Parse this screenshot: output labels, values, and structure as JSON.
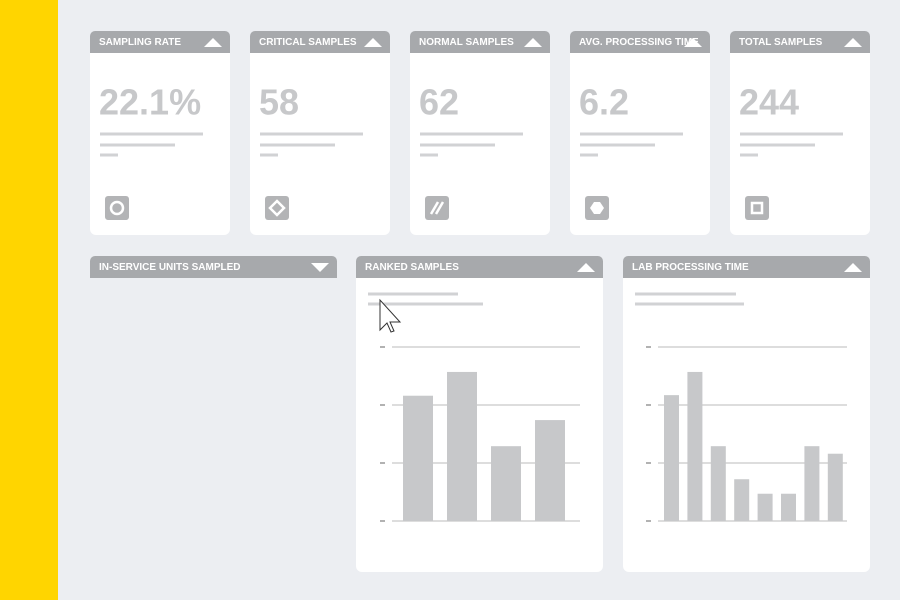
{
  "cards": [
    {
      "title": "SAMPLING RATE",
      "value": "22.1%"
    },
    {
      "title": "CRITICAL SAMPLES",
      "value": "58"
    },
    {
      "title": "NORMAL SAMPLES",
      "value": "62"
    },
    {
      "title": "AVG. PROCESSING TIME",
      "value": "6.2"
    },
    {
      "title": "TOTAL SAMPLES",
      "value": "244"
    }
  ],
  "panels": [
    {
      "title": "IN-SERVICE UNITS SAMPLED"
    },
    {
      "title": "RANKED SAMPLES",
      "chart": {
        "type": "bar",
        "values": [
          2.16,
          2.57,
          1.29,
          1.74
        ],
        "ylim": [
          0,
          3
        ],
        "yticks": [
          0,
          1,
          2,
          3
        ],
        "grid": true,
        "color": "#c7c8ca"
      }
    },
    {
      "title": "LAB PROCESSING TIME",
      "chart": {
        "type": "bar",
        "values": [
          2.17,
          2.57,
          1.29,
          0.72,
          0.47,
          0.47,
          1.29,
          1.16
        ],
        "ylim": [
          0,
          3
        ],
        "yticks": [
          0,
          1,
          2,
          3
        ],
        "grid": true,
        "color": "#c7c8ca"
      }
    }
  ]
}
